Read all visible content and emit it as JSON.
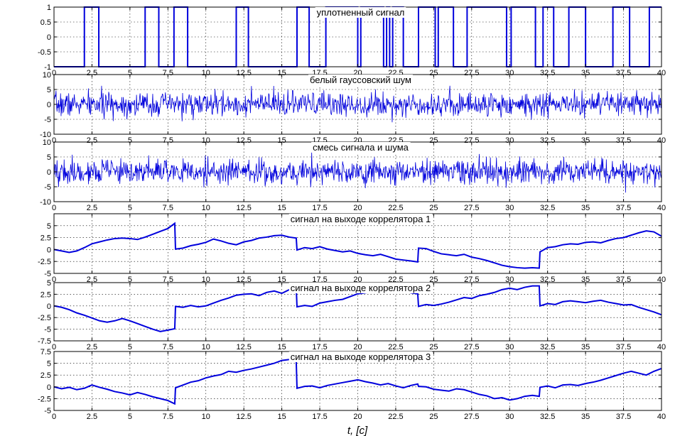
{
  "figure": {
    "xlabel": "t, [c]"
  },
  "chart_data": [
    {
      "type": "line",
      "title": "уплотненный сигнал",
      "xlim": [
        0,
        40
      ],
      "ylim": [
        -1,
        1
      ],
      "yticks": [
        1,
        0.5,
        0,
        -0.5,
        -1
      ],
      "xticks": [
        0,
        2.5,
        5,
        7.5,
        10,
        12.5,
        15,
        17.5,
        20,
        22.5,
        25,
        27.5,
        30,
        32.5,
        35,
        37.5,
        40
      ],
      "grid": true,
      "color": "#0000dd",
      "kind": "step",
      "x": [
        0,
        2,
        2.95,
        6,
        6.9,
        7.9,
        8.8,
        12,
        12.8,
        16,
        16.8,
        17.9,
        20,
        20.2,
        21.7,
        21.9,
        22.1,
        22.3,
        23,
        24,
        25.1,
        25.3,
        26.3,
        27.2,
        29.8,
        30.1,
        31.7,
        32.2,
        32.9,
        33.9,
        35,
        36.8,
        37.9,
        39.2,
        40
      ],
      "y": [
        -1,
        1,
        -1,
        1,
        -1,
        1,
        -1,
        1,
        -1,
        1,
        -1,
        1,
        -1,
        1,
        -1,
        1,
        -1,
        1,
        -1,
        1,
        -1,
        1,
        -1,
        1,
        -1,
        1,
        -1,
        1,
        -1,
        1,
        -1,
        1,
        -1,
        1,
        1
      ]
    },
    {
      "type": "line",
      "title": "белый гауссовский шум",
      "xlim": [
        0,
        40
      ],
      "ylim": [
        -10,
        10
      ],
      "yticks": [
        10,
        5,
        0,
        -5,
        -10
      ],
      "xticks": [
        0,
        2.5,
        5,
        7.5,
        10,
        12.5,
        15,
        17.5,
        20,
        22.5,
        25,
        27.5,
        30,
        32.5,
        35,
        37.5,
        40
      ],
      "grid": true,
      "color": "#0000dd",
      "kind": "noise",
      "noise_std": 2,
      "noise_points": 1200,
      "noise_seed": 7
    },
    {
      "type": "line",
      "title": "смесь сигнала и шума",
      "xlim": [
        0,
        40
      ],
      "ylim": [
        -10,
        10
      ],
      "yticks": [
        10,
        5,
        0,
        -5,
        -10
      ],
      "xticks": [
        0,
        2.5,
        5,
        7.5,
        10,
        12.5,
        15,
        17.5,
        20,
        22.5,
        25,
        27.5,
        30,
        32.5,
        35,
        37.5,
        40
      ],
      "grid": true,
      "color": "#0000dd",
      "kind": "noise",
      "noise_std": 2.1,
      "noise_points": 1200,
      "noise_seed": 19
    },
    {
      "type": "line",
      "title": "сигнал на выходе коррелятора 1",
      "xlim": [
        0,
        40
      ],
      "ylim": [
        -5,
        7.5
      ],
      "yticks": [
        5,
        2.5,
        0,
        -2.5,
        -5
      ],
      "xticks": [
        0,
        2.5,
        5,
        7.5,
        10,
        12.5,
        15,
        17.5,
        20,
        22.5,
        25,
        27.5,
        30,
        32.5,
        35,
        37.5,
        40
      ],
      "grid": true,
      "color": "#0000dd",
      "kind": "line",
      "x": [
        0,
        0.5,
        1,
        1.5,
        2,
        2.5,
        3,
        3.5,
        4,
        4.5,
        5,
        5.5,
        6,
        6.5,
        7,
        7.5,
        7.95,
        8,
        8.5,
        9,
        9.5,
        10,
        10.5,
        11,
        11.5,
        12,
        12.5,
        13,
        13.5,
        14,
        14.5,
        15,
        15.5,
        15.95,
        16,
        16.5,
        17,
        17.5,
        18,
        18.5,
        19,
        19.5,
        20,
        20.5,
        21,
        21.5,
        22,
        22.5,
        23,
        23.5,
        23.95,
        24,
        24.5,
        25,
        25.5,
        26,
        26.5,
        27,
        27.5,
        28,
        28.5,
        29,
        29.5,
        30,
        30.5,
        31,
        31.5,
        31.95,
        32,
        32.5,
        33,
        33.5,
        34,
        34.5,
        35,
        35.5,
        36,
        36.5,
        37,
        37.5,
        38,
        38.5,
        39,
        39.5,
        40
      ],
      "y": [
        0,
        -0.3,
        -0.6,
        -0.3,
        0.4,
        1.2,
        1.6,
        2.0,
        2.3,
        2.4,
        2.3,
        2.1,
        2.6,
        3.2,
        3.8,
        4.4,
        5.5,
        0.1,
        0.3,
        0.8,
        1.1,
        1.5,
        2.2,
        1.8,
        1.3,
        1.0,
        1.6,
        1.9,
        2.4,
        2.6,
        2.9,
        3.0,
        2.6,
        2.4,
        -0.1,
        0.4,
        0.2,
        0.6,
        0.1,
        -0.2,
        -0.5,
        -0.3,
        -0.8,
        -1.1,
        -1.3,
        -1.0,
        -1.5,
        -2.0,
        -2.2,
        -2.4,
        -2.6,
        0.3,
        0.2,
        -0.4,
        -0.9,
        -1.1,
        -1.3,
        -1.0,
        -1.6,
        -1.9,
        -2.3,
        -2.8,
        -3.3,
        -3.6,
        -3.8,
        -3.9,
        -3.8,
        -3.9,
        -0.5,
        0.4,
        0.6,
        1.0,
        1.2,
        1.1,
        1.5,
        1.6,
        1.4,
        1.9,
        2.3,
        2.5,
        3.0,
        3.5,
        3.9,
        3.7,
        2.8
      ]
    },
    {
      "type": "line",
      "title": "сигнал на выходе коррелятора 2",
      "xlim": [
        0,
        40
      ],
      "ylim": [
        -7.5,
        5
      ],
      "yticks": [
        5,
        2.5,
        0,
        -2.5,
        -5,
        -7.5
      ],
      "xticks": [
        0,
        2.5,
        5,
        7.5,
        10,
        12.5,
        15,
        17.5,
        20,
        22.5,
        25,
        27.5,
        30,
        32.5,
        35,
        37.5,
        40
      ],
      "grid": true,
      "color": "#0000dd",
      "kind": "line",
      "x": [
        0,
        0.5,
        1,
        1.5,
        2,
        2.5,
        3,
        3.5,
        4,
        4.5,
        5,
        5.5,
        6,
        6.5,
        7,
        7.5,
        7.95,
        8,
        8.5,
        9,
        9.5,
        10,
        10.5,
        11,
        11.5,
        12,
        12.5,
        13,
        13.5,
        14,
        14.5,
        15,
        15.5,
        15.95,
        16,
        16.5,
        17,
        17.5,
        18,
        18.5,
        19,
        19.5,
        20,
        20.5,
        21,
        21.5,
        22,
        22.5,
        23,
        23.5,
        23.95,
        24,
        24.5,
        25,
        25.5,
        26,
        26.5,
        27,
        27.5,
        28,
        28.5,
        29,
        29.5,
        30,
        30.5,
        31,
        31.5,
        31.95,
        32,
        32.5,
        33,
        33.5,
        34,
        34.5,
        35,
        35.5,
        36,
        36.5,
        37,
        37.5,
        38,
        38.5,
        39,
        39.5,
        40
      ],
      "y": [
        0,
        -0.3,
        -0.8,
        -1.5,
        -2.0,
        -2.6,
        -3.2,
        -3.5,
        -3.2,
        -2.7,
        -3.2,
        -3.8,
        -4.4,
        -5.0,
        -5.5,
        -5.2,
        -4.9,
        -0.1,
        -0.3,
        0.1,
        -0.2,
        0.0,
        0.6,
        1.2,
        1.7,
        2.3,
        2.5,
        2.6,
        2.2,
        2.9,
        3.2,
        2.7,
        3.5,
        3.9,
        -0.2,
        0.1,
        -0.1,
        0.6,
        0.9,
        1.2,
        1.4,
        2.0,
        2.6,
        2.8,
        3.1,
        3.4,
        3.9,
        3.6,
        3.3,
        2.8,
        2.6,
        -0.1,
        0.3,
        0.1,
        0.4,
        0.8,
        1.3,
        1.8,
        1.6,
        2.2,
        2.5,
        2.9,
        3.5,
        3.8,
        3.5,
        4.0,
        4.3,
        4.3,
        0.0,
        0.5,
        0.3,
        0.9,
        1.1,
        0.9,
        0.7,
        1.0,
        1.2,
        0.8,
        0.5,
        0.2,
        0.3,
        -0.3,
        -0.8,
        -1.3,
        -1.9
      ]
    },
    {
      "type": "line",
      "title": "сигнал на выходе коррелятора 3",
      "xlim": [
        0,
        40
      ],
      "ylim": [
        -5,
        7.5
      ],
      "yticks": [
        7.5,
        5,
        2.5,
        0,
        -2.5,
        -5
      ],
      "xticks": [
        0,
        2.5,
        5,
        7.5,
        10,
        12.5,
        15,
        17.5,
        20,
        22.5,
        25,
        27.5,
        30,
        32.5,
        35,
        37.5,
        40
      ],
      "grid": true,
      "color": "#0000dd",
      "kind": "line",
      "x": [
        0,
        0.5,
        1,
        1.5,
        2,
        2.5,
        3,
        3.5,
        4,
        4.5,
        5,
        5.5,
        6,
        6.5,
        7,
        7.5,
        7.95,
        8,
        8.5,
        9,
        9.5,
        10,
        10.5,
        11,
        11.5,
        12,
        12.5,
        13,
        13.5,
        14,
        14.5,
        15,
        15.5,
        15.95,
        16,
        16.5,
        17,
        17.5,
        18,
        18.5,
        19,
        19.5,
        20,
        20.5,
        21,
        21.5,
        22,
        22.5,
        23,
        23.5,
        23.95,
        24,
        24.5,
        25,
        25.5,
        26,
        26.5,
        27,
        27.5,
        28,
        28.5,
        29,
        29.5,
        30,
        30.5,
        31,
        31.5,
        31.95,
        32,
        32.5,
        33,
        33.5,
        34,
        34.5,
        35,
        35.5,
        36,
        36.5,
        37,
        37.5,
        38,
        38.5,
        39,
        39.5,
        40
      ],
      "y": [
        0,
        -0.4,
        -0.1,
        -0.6,
        -0.3,
        0.4,
        -0.1,
        -0.5,
        -1.0,
        -1.3,
        -1.7,
        -1.2,
        -1.6,
        -2.1,
        -2.5,
        -2.9,
        -3.6,
        -0.2,
        0.4,
        1.0,
        1.3,
        1.9,
        2.3,
        2.6,
        3.3,
        3.1,
        3.5,
        3.8,
        4.2,
        4.6,
        5.0,
        5.6,
        5.8,
        5.4,
        -0.3,
        0.1,
        0.2,
        -0.2,
        0.3,
        0.6,
        0.9,
        1.2,
        1.5,
        1.1,
        0.8,
        0.4,
        0.7,
        0.2,
        -0.2,
        0.3,
        0.6,
        0.1,
        0.0,
        -0.5,
        -0.7,
        -0.9,
        -0.4,
        -0.6,
        -1.1,
        -1.6,
        -1.9,
        -2.5,
        -2.3,
        -2.8,
        -2.5,
        -2.0,
        -1.8,
        -2.0,
        -0.1,
        0.2,
        -0.2,
        0.4,
        0.5,
        0.3,
        0.7,
        1.0,
        1.4,
        1.9,
        2.4,
        2.9,
        3.3,
        2.9,
        2.5,
        3.3,
        3.9
      ]
    }
  ]
}
